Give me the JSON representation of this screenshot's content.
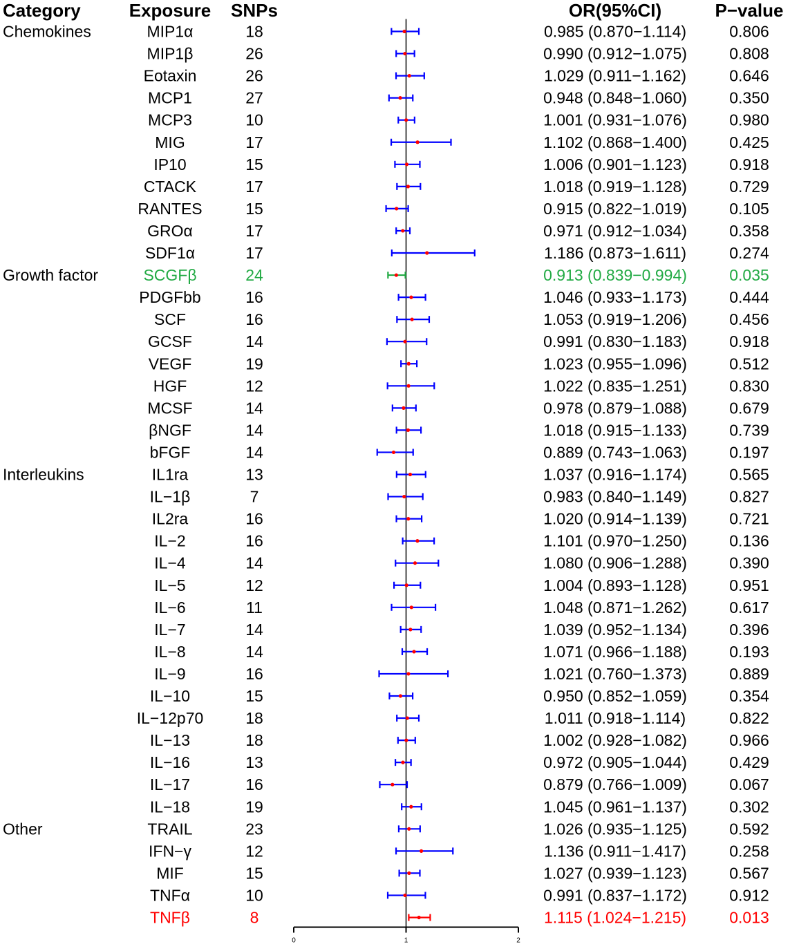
{
  "colors": {
    "default_text": "#000000",
    "ci_line": "#0000ff",
    "point": "#ff0000",
    "highlight_green": "#22aa44",
    "highlight_red": "#ff0000",
    "axis": "#000000"
  },
  "headers": {
    "category": "Category",
    "exposure": "Exposure",
    "snps": "SNPs",
    "or_ci": "OR(95%CI)",
    "pvalue": "P−value"
  },
  "chart_data": {
    "type": "forest",
    "xaxis": {
      "range": [
        0,
        2
      ],
      "ticks": [
        "0",
        "1",
        "2"
      ],
      "reference_line": 1
    },
    "rows": [
      {
        "category": "Chemokines",
        "exposure": "MIP1α",
        "snps": "18",
        "or": 0.985,
        "lo": 0.87,
        "hi": 1.114,
        "or_text": "0.985 (0.870−1.114)",
        "p": "0.806",
        "highlight": null
      },
      {
        "category": "",
        "exposure": "MIP1β",
        "snps": "26",
        "or": 0.99,
        "lo": 0.912,
        "hi": 1.075,
        "or_text": "0.990 (0.912−1.075)",
        "p": "0.808",
        "highlight": null
      },
      {
        "category": "",
        "exposure": "Eotaxin",
        "snps": "26",
        "or": 1.029,
        "lo": 0.911,
        "hi": 1.162,
        "or_text": "1.029 (0.911−1.162)",
        "p": "0.646",
        "highlight": null
      },
      {
        "category": "",
        "exposure": "MCP1",
        "snps": "27",
        "or": 0.948,
        "lo": 0.848,
        "hi": 1.06,
        "or_text": "0.948 (0.848−1.060)",
        "p": "0.350",
        "highlight": null
      },
      {
        "category": "",
        "exposure": "MCP3",
        "snps": "10",
        "or": 1.001,
        "lo": 0.931,
        "hi": 1.076,
        "or_text": "1.001 (0.931−1.076)",
        "p": "0.980",
        "highlight": null
      },
      {
        "category": "",
        "exposure": "MIG",
        "snps": "17",
        "or": 1.102,
        "lo": 0.868,
        "hi": 1.4,
        "or_text": "1.102 (0.868−1.400)",
        "p": "0.425",
        "highlight": null
      },
      {
        "category": "",
        "exposure": "IP10",
        "snps": "15",
        "or": 1.006,
        "lo": 0.901,
        "hi": 1.123,
        "or_text": "1.006 (0.901−1.123)",
        "p": "0.918",
        "highlight": null
      },
      {
        "category": "",
        "exposure": "CTACK",
        "snps": "17",
        "or": 1.018,
        "lo": 0.919,
        "hi": 1.128,
        "or_text": "1.018 (0.919−1.128)",
        "p": "0.729",
        "highlight": null
      },
      {
        "category": "",
        "exposure": "RANTES",
        "snps": "15",
        "or": 0.915,
        "lo": 0.822,
        "hi": 1.019,
        "or_text": "0.915 (0.822−1.019)",
        "p": "0.105",
        "highlight": null
      },
      {
        "category": "",
        "exposure": "GROα",
        "snps": "17",
        "or": 0.971,
        "lo": 0.912,
        "hi": 1.034,
        "or_text": "0.971 (0.912−1.034)",
        "p": "0.358",
        "highlight": null
      },
      {
        "category": "",
        "exposure": "SDF1α",
        "snps": "17",
        "or": 1.186,
        "lo": 0.873,
        "hi": 1.611,
        "or_text": "1.186 (0.873−1.611)",
        "p": "0.274",
        "highlight": null
      },
      {
        "category": "Growth factor",
        "exposure": "SCGFβ",
        "snps": "24",
        "or": 0.913,
        "lo": 0.839,
        "hi": 0.994,
        "or_text": "0.913 (0.839−0.994)",
        "p": "0.035",
        "highlight": "green"
      },
      {
        "category": "",
        "exposure": "PDGFbb",
        "snps": "16",
        "or": 1.046,
        "lo": 0.933,
        "hi": 1.173,
        "or_text": "1.046 (0.933−1.173)",
        "p": "0.444",
        "highlight": null
      },
      {
        "category": "",
        "exposure": "SCF",
        "snps": "16",
        "or": 1.053,
        "lo": 0.919,
        "hi": 1.206,
        "or_text": "1.053 (0.919−1.206)",
        "p": "0.456",
        "highlight": null
      },
      {
        "category": "",
        "exposure": "GCSF",
        "snps": "14",
        "or": 0.991,
        "lo": 0.83,
        "hi": 1.183,
        "or_text": "0.991 (0.830−1.183)",
        "p": "0.918",
        "highlight": null
      },
      {
        "category": "",
        "exposure": "VEGF",
        "snps": "19",
        "or": 1.023,
        "lo": 0.955,
        "hi": 1.096,
        "or_text": "1.023 (0.955−1.096)",
        "p": "0.512",
        "highlight": null
      },
      {
        "category": "",
        "exposure": "HGF",
        "snps": "12",
        "or": 1.022,
        "lo": 0.835,
        "hi": 1.251,
        "or_text": "1.022 (0.835−1.251)",
        "p": "0.830",
        "highlight": null
      },
      {
        "category": "",
        "exposure": "MCSF",
        "snps": "14",
        "or": 0.978,
        "lo": 0.879,
        "hi": 1.088,
        "or_text": "0.978 (0.879−1.088)",
        "p": "0.679",
        "highlight": null
      },
      {
        "category": "",
        "exposure": "βNGF",
        "snps": "14",
        "or": 1.018,
        "lo": 0.915,
        "hi": 1.133,
        "or_text": "1.018 (0.915−1.133)",
        "p": "0.739",
        "highlight": null
      },
      {
        "category": "",
        "exposure": "bFGF",
        "snps": "14",
        "or": 0.889,
        "lo": 0.743,
        "hi": 1.063,
        "or_text": "0.889 (0.743−1.063)",
        "p": "0.197",
        "highlight": null
      },
      {
        "category": "Interleukins",
        "exposure": "IL1ra",
        "snps": "13",
        "or": 1.037,
        "lo": 0.916,
        "hi": 1.174,
        "or_text": "1.037 (0.916−1.174)",
        "p": "0.565",
        "highlight": null
      },
      {
        "category": "",
        "exposure": "IL−1β",
        "snps": "7",
        "or": 0.983,
        "lo": 0.84,
        "hi": 1.149,
        "or_text": "0.983 (0.840−1.149)",
        "p": "0.827",
        "highlight": null
      },
      {
        "category": "",
        "exposure": "IL2ra",
        "snps": "16",
        "or": 1.02,
        "lo": 0.914,
        "hi": 1.139,
        "or_text": "1.020 (0.914−1.139)",
        "p": "0.721",
        "highlight": null
      },
      {
        "category": "",
        "exposure": "IL−2",
        "snps": "16",
        "or": 1.101,
        "lo": 0.97,
        "hi": 1.25,
        "or_text": "1.101 (0.970−1.250)",
        "p": "0.136",
        "highlight": null
      },
      {
        "category": "",
        "exposure": "IL−4",
        "snps": "14",
        "or": 1.08,
        "lo": 0.906,
        "hi": 1.288,
        "or_text": "1.080 (0.906−1.288)",
        "p": "0.390",
        "highlight": null
      },
      {
        "category": "",
        "exposure": "IL−5",
        "snps": "12",
        "or": 1.004,
        "lo": 0.893,
        "hi": 1.128,
        "or_text": "1.004 (0.893−1.128)",
        "p": "0.951",
        "highlight": null
      },
      {
        "category": "",
        "exposure": "IL−6",
        "snps": "11",
        "or": 1.048,
        "lo": 0.871,
        "hi": 1.262,
        "or_text": "1.048 (0.871−1.262)",
        "p": "0.617",
        "highlight": null
      },
      {
        "category": "",
        "exposure": "IL−7",
        "snps": "14",
        "or": 1.039,
        "lo": 0.952,
        "hi": 1.134,
        "or_text": "1.039 (0.952−1.134)",
        "p": "0.396",
        "highlight": null
      },
      {
        "category": "",
        "exposure": "IL−8",
        "snps": "14",
        "or": 1.071,
        "lo": 0.966,
        "hi": 1.188,
        "or_text": "1.071 (0.966−1.188)",
        "p": "0.193",
        "highlight": null
      },
      {
        "category": "",
        "exposure": "IL−9",
        "snps": "16",
        "or": 1.021,
        "lo": 0.76,
        "hi": 1.373,
        "or_text": "1.021 (0.760−1.373)",
        "p": "0.889",
        "highlight": null
      },
      {
        "category": "",
        "exposure": "IL−10",
        "snps": "15",
        "or": 0.95,
        "lo": 0.852,
        "hi": 1.059,
        "or_text": "0.950 (0.852−1.059)",
        "p": "0.354",
        "highlight": null
      },
      {
        "category": "",
        "exposure": "IL−12p70",
        "snps": "18",
        "or": 1.011,
        "lo": 0.918,
        "hi": 1.114,
        "or_text": "1.011 (0.918−1.114)",
        "p": "0.822",
        "highlight": null
      },
      {
        "category": "",
        "exposure": "IL−13",
        "snps": "18",
        "or": 1.002,
        "lo": 0.928,
        "hi": 1.082,
        "or_text": "1.002 (0.928−1.082)",
        "p": "0.966",
        "highlight": null
      },
      {
        "category": "",
        "exposure": "IL−16",
        "snps": "13",
        "or": 0.972,
        "lo": 0.905,
        "hi": 1.044,
        "or_text": "0.972 (0.905−1.044)",
        "p": "0.429",
        "highlight": null
      },
      {
        "category": "",
        "exposure": "IL−17",
        "snps": "16",
        "or": 0.879,
        "lo": 0.766,
        "hi": 1.009,
        "or_text": "0.879 (0.766−1.009)",
        "p": "0.067",
        "highlight": null
      },
      {
        "category": "",
        "exposure": "IL−18",
        "snps": "19",
        "or": 1.045,
        "lo": 0.961,
        "hi": 1.137,
        "or_text": "1.045 (0.961−1.137)",
        "p": "0.302",
        "highlight": null
      },
      {
        "category": "Other",
        "exposure": "TRAIL",
        "snps": "23",
        "or": 1.026,
        "lo": 0.935,
        "hi": 1.125,
        "or_text": "1.026 (0.935−1.125)",
        "p": "0.592",
        "highlight": null
      },
      {
        "category": "",
        "exposure": "IFN−γ",
        "snps": "12",
        "or": 1.136,
        "lo": 0.911,
        "hi": 1.417,
        "or_text": "1.136 (0.911−1.417)",
        "p": "0.258",
        "highlight": null
      },
      {
        "category": "",
        "exposure": "MIF",
        "snps": "15",
        "or": 1.027,
        "lo": 0.939,
        "hi": 1.123,
        "or_text": "1.027 (0.939−1.123)",
        "p": "0.567",
        "highlight": null
      },
      {
        "category": "",
        "exposure": "TNFα",
        "snps": "10",
        "or": 0.991,
        "lo": 0.837,
        "hi": 1.172,
        "or_text": "0.991 (0.837−1.172)",
        "p": "0.912",
        "highlight": null
      },
      {
        "category": "",
        "exposure": "TNFβ",
        "snps": "8",
        "or": 1.115,
        "lo": 1.024,
        "hi": 1.215,
        "or_text": "1.115 (1.024−1.215)",
        "p": "0.013",
        "highlight": "red"
      }
    ]
  }
}
